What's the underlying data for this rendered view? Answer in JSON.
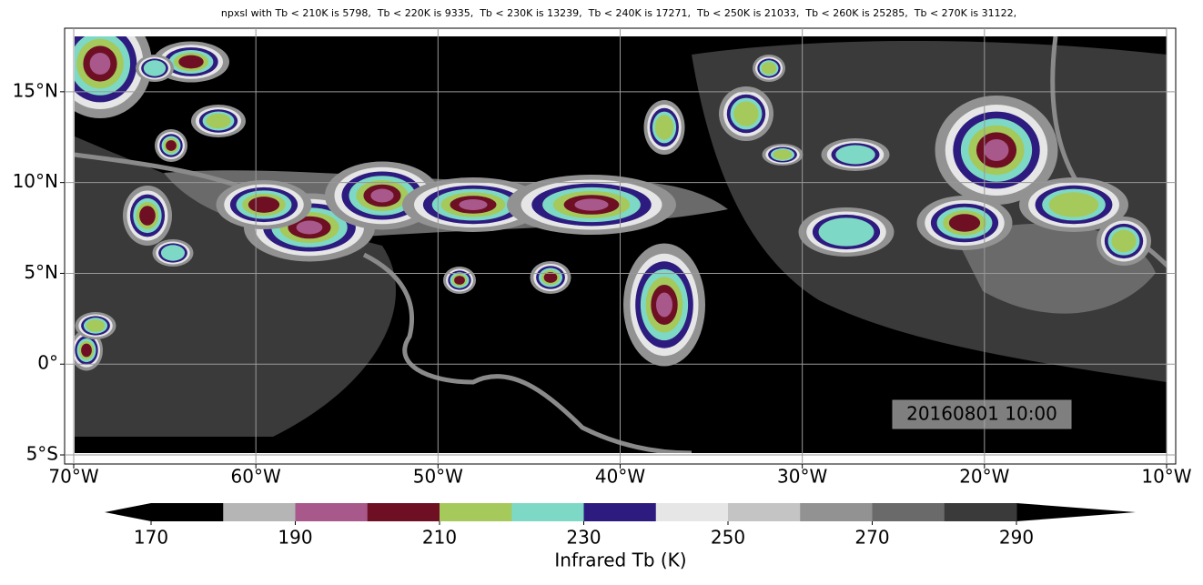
{
  "chart_data": {
    "type": "map",
    "title": "npxsl with Tb < 210K is 5798,  Tb < 220K is 9335,  Tb < 230K is 13239,  Tb < 240K is 17271,  Tb < 250K is 21033,  Tb < 260K is 25285,  Tb < 270K is 31122,",
    "xlim": [
      -70.5,
      -9.5
    ],
    "ylim": [
      -5.5,
      18.5
    ],
    "xticks": [
      {
        "value": -70,
        "label": "70°W"
      },
      {
        "value": -60,
        "label": "60°W"
      },
      {
        "value": -50,
        "label": "50°W"
      },
      {
        "value": -40,
        "label": "40°W"
      },
      {
        "value": -30,
        "label": "30°W"
      },
      {
        "value": -20,
        "label": "20°W"
      },
      {
        "value": -10,
        "label": "10°W"
      }
    ],
    "yticks": [
      {
        "value": -5,
        "label": "5°S"
      },
      {
        "value": 0,
        "label": "0°"
      },
      {
        "value": 5,
        "label": "5°N"
      },
      {
        "value": 10,
        "label": "10°N"
      },
      {
        "value": 15,
        "label": "15°N"
      }
    ],
    "grid": true,
    "annotation": "20160801 10:00",
    "colorbar": {
      "label": "Infrared Tb (K)",
      "boundaries": [
        170,
        180,
        190,
        200,
        210,
        220,
        230,
        240,
        250,
        260,
        270,
        280,
        290
      ],
      "colors": [
        "#000000",
        "#b5b5b5",
        "#a8588a",
        "#6e0f24",
        "#a5c95a",
        "#7dd9c5",
        "#2d1b7f",
        "#e6e6e6",
        "#c4c4c4",
        "#929292",
        "#6a6a6a",
        "#3a3a3a"
      ],
      "extend_colors": [
        "#000000",
        "#000000"
      ],
      "ticks": [
        170,
        190,
        210,
        230,
        250,
        270,
        290
      ]
    }
  }
}
